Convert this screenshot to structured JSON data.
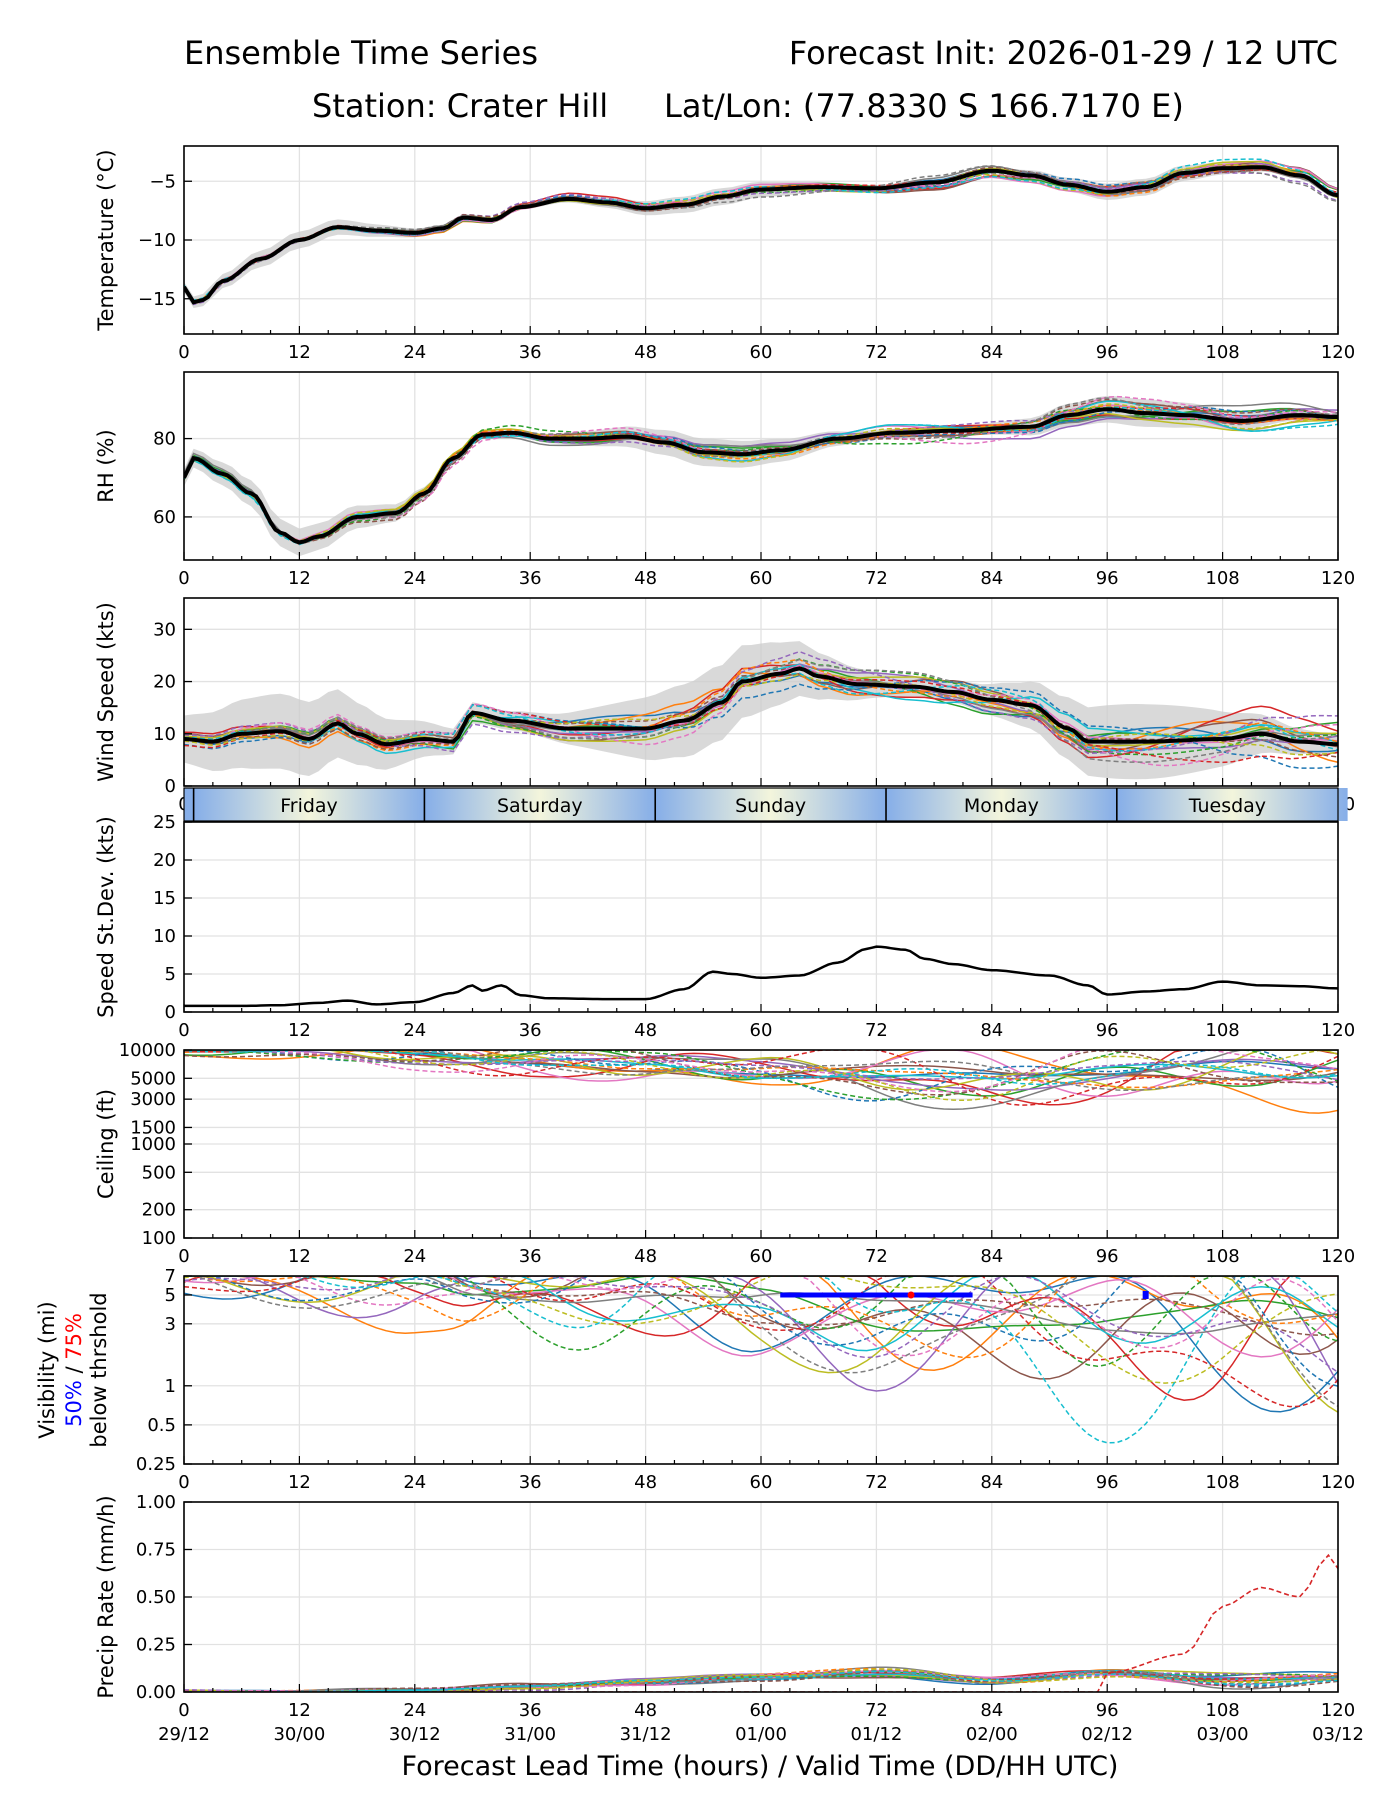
{
  "header": {
    "title_left": "Ensemble Time Series",
    "title_right": "Forecast Init: 2026-01-29 / 12 UTC",
    "station": "Station: Crater Hill",
    "latlon": "Lat/Lon: (77.8330 S 166.7170 E)"
  },
  "footer": {
    "xlabel": "Forecast Lead Time (hours) / Valid Time (DD/HH UTC)"
  },
  "colors": {
    "members": [
      "#1f77b4",
      "#ff7f0e",
      "#2ca02c",
      "#d62728",
      "#9467bd",
      "#8c564b",
      "#e377c2",
      "#7f7f7f",
      "#bcbd22",
      "#17becf"
    ],
    "mean": "#000000",
    "spread": "#cccccc",
    "threshold50": "#0000ff",
    "threshold75": "#ff0000",
    "day_gradient_edge": "#86aee8",
    "day_gradient_mid": "#f3f5dc"
  },
  "chart_data": {
    "x_ticks": [
      0,
      12,
      24,
      36,
      48,
      60,
      72,
      84,
      96,
      108,
      120
    ],
    "valid_time_labels": [
      "29/12",
      "30/00",
      "30/12",
      "31/00",
      "31/12",
      "01/00",
      "01/12",
      "02/00",
      "02/12",
      "03/00",
      "03/12"
    ],
    "day_band": {
      "labels": [
        "Friday",
        "Saturday",
        "Sunday",
        "Monday",
        "Tuesday"
      ],
      "boundaries_h": [
        1,
        25,
        49,
        73,
        97
      ]
    },
    "panels": [
      {
        "key": "temperature",
        "type": "line",
        "ylabel": "Temperature (°C)",
        "ylim": [
          -18,
          -2
        ],
        "yticks": [
          -15,
          -10,
          -5
        ],
        "ytick_labels": [
          "−15",
          "−10",
          "−5"
        ],
        "ensemble_members": 20,
        "member_noise": 0.5,
        "spread": 0.45,
        "mean": [
          [
            0,
            -14
          ],
          [
            1,
            -15.3
          ],
          [
            2,
            -15.1
          ],
          [
            4,
            -13.5
          ],
          [
            8,
            -11.6
          ],
          [
            12,
            -10.0
          ],
          [
            16,
            -8.9
          ],
          [
            20,
            -9.2
          ],
          [
            24,
            -9.4
          ],
          [
            27,
            -9.0
          ],
          [
            29,
            -8.1
          ],
          [
            32,
            -8.3
          ],
          [
            35,
            -7.2
          ],
          [
            40,
            -6.5
          ],
          [
            44,
            -6.8
          ],
          [
            48,
            -7.3
          ],
          [
            52,
            -7.0
          ],
          [
            56,
            -6.3
          ],
          [
            60,
            -5.7
          ],
          [
            66,
            -5.5
          ],
          [
            72,
            -5.6
          ],
          [
            78,
            -5.1
          ],
          [
            84,
            -4.1
          ],
          [
            88,
            -4.5
          ],
          [
            92,
            -5.3
          ],
          [
            96,
            -5.9
          ],
          [
            100,
            -5.5
          ],
          [
            104,
            -4.3
          ],
          [
            108,
            -3.9
          ],
          [
            112,
            -3.8
          ],
          [
            116,
            -4.5
          ],
          [
            120,
            -6.2
          ]
        ]
      },
      {
        "key": "rh",
        "type": "line",
        "ylabel": "RH (%)",
        "ylim": [
          49,
          97
        ],
        "yticks": [
          60,
          80
        ],
        "ytick_labels": [
          "60",
          "80"
        ],
        "ensemble_members": 20,
        "member_noise": 2.5,
        "spread": 2.2,
        "mean": [
          [
            0,
            70
          ],
          [
            1,
            75
          ],
          [
            4,
            71
          ],
          [
            7,
            66
          ],
          [
            10,
            56
          ],
          [
            12,
            53.5
          ],
          [
            14,
            55
          ],
          [
            18,
            60
          ],
          [
            22,
            61
          ],
          [
            25,
            66
          ],
          [
            28,
            75
          ],
          [
            31,
            81
          ],
          [
            34,
            81.5
          ],
          [
            38,
            80
          ],
          [
            42,
            80
          ],
          [
            46,
            80.5
          ],
          [
            50,
            79
          ],
          [
            54,
            76.5
          ],
          [
            58,
            76
          ],
          [
            62,
            77
          ],
          [
            68,
            80
          ],
          [
            74,
            81.5
          ],
          [
            80,
            82
          ],
          [
            88,
            83
          ],
          [
            92,
            86
          ],
          [
            96,
            87.5
          ],
          [
            100,
            86.5
          ],
          [
            104,
            86
          ],
          [
            110,
            84.5
          ],
          [
            116,
            86
          ],
          [
            120,
            85.5
          ]
        ]
      },
      {
        "key": "wind",
        "type": "line",
        "ylabel": "Wind Speed (kts)",
        "ylim": [
          0,
          36
        ],
        "yticks": [
          0,
          10,
          20,
          30
        ],
        "ytick_labels": [
          "0",
          "10",
          "20",
          "30"
        ],
        "ensemble_members": 20,
        "member_noise": 3.5,
        "spread": 4.5,
        "mean": [
          [
            0,
            9
          ],
          [
            3,
            8.5
          ],
          [
            6,
            10
          ],
          [
            10,
            10.5
          ],
          [
            13,
            9
          ],
          [
            16,
            12
          ],
          [
            18,
            10
          ],
          [
            21,
            8
          ],
          [
            25,
            9
          ],
          [
            28,
            8.5
          ],
          [
            30,
            14
          ],
          [
            34,
            12.5
          ],
          [
            40,
            11
          ],
          [
            48,
            11
          ],
          [
            52,
            12.5
          ],
          [
            56,
            16
          ],
          [
            58,
            20
          ],
          [
            62,
            21.5
          ],
          [
            64,
            22.5
          ],
          [
            66,
            21
          ],
          [
            70,
            19.5
          ],
          [
            76,
            19
          ],
          [
            80,
            18
          ],
          [
            84,
            16.5
          ],
          [
            88,
            15.5
          ],
          [
            92,
            11
          ],
          [
            94,
            8.5
          ],
          [
            100,
            8.5
          ],
          [
            108,
            9
          ],
          [
            112,
            10
          ],
          [
            116,
            8.5
          ],
          [
            120,
            8
          ]
        ]
      },
      {
        "key": "speed_stdev",
        "type": "line",
        "ylabel": "Speed St.Dev. (kts)",
        "ylim": [
          0,
          25
        ],
        "yticks": [
          0,
          5,
          10,
          15,
          20,
          25
        ],
        "ytick_labels": [
          "0",
          "5",
          "10",
          "15",
          "20",
          "25"
        ],
        "ensemble_members": 0,
        "mean": [
          [
            0,
            0.8
          ],
          [
            6,
            0.8
          ],
          [
            10,
            0.9
          ],
          [
            14,
            1.2
          ],
          [
            17,
            1.5
          ],
          [
            20,
            1.0
          ],
          [
            24,
            1.3
          ],
          [
            28,
            2.5
          ],
          [
            30,
            3.5
          ],
          [
            31,
            2.8
          ],
          [
            33,
            3.5
          ],
          [
            35,
            2.2
          ],
          [
            38,
            1.8
          ],
          [
            44,
            1.7
          ],
          [
            48,
            1.7
          ],
          [
            52,
            3.0
          ],
          [
            55,
            5.3
          ],
          [
            57,
            5.0
          ],
          [
            60,
            4.5
          ],
          [
            64,
            4.8
          ],
          [
            68,
            6.5
          ],
          [
            71,
            8.3
          ],
          [
            72,
            8.6
          ],
          [
            75,
            8.2
          ],
          [
            77,
            7.0
          ],
          [
            80,
            6.3
          ],
          [
            84,
            5.5
          ],
          [
            90,
            4.8
          ],
          [
            94,
            3.5
          ],
          [
            96,
            2.3
          ],
          [
            100,
            2.7
          ],
          [
            104,
            3.0
          ],
          [
            108,
            4.0
          ],
          [
            112,
            3.5
          ],
          [
            116,
            3.4
          ],
          [
            120,
            3.1
          ]
        ]
      },
      {
        "key": "ceiling",
        "type": "line",
        "scale": "log",
        "ylabel": "Ceiling (ft)",
        "ylim": [
          100,
          10000
        ],
        "yticks": [
          100,
          200,
          500,
          1000,
          1500,
          3000,
          5000,
          10000
        ],
        "ytick_labels": [
          "100",
          "200",
          "500",
          "1000",
          "1500",
          "3000",
          "5000",
          "10000"
        ],
        "ensemble_members": 20,
        "member_noise": 0.12,
        "cap": 10000,
        "median": [
          [
            0,
            10000
          ],
          [
            12,
            10000
          ],
          [
            24,
            9000
          ],
          [
            36,
            8000
          ],
          [
            48,
            6500
          ],
          [
            60,
            5500
          ],
          [
            72,
            5000
          ],
          [
            84,
            5500
          ],
          [
            96,
            6000
          ],
          [
            108,
            6500
          ],
          [
            120,
            5500
          ]
        ]
      },
      {
        "key": "visibility",
        "type": "line",
        "scale": "log",
        "ylabel": "Visibility (mi)",
        "ylabel_extra": [
          "50%",
          " / ",
          "75%",
          "below thrshold"
        ],
        "ylim": [
          0.25,
          7
        ],
        "yticks": [
          0.25,
          0.5,
          1,
          3,
          5,
          7
        ],
        "ytick_labels": [
          "0.25",
          "0.5",
          "1",
          "3",
          "5",
          "7"
        ],
        "ensemble_members": 20,
        "member_noise": 0.25,
        "cap": 7,
        "median": [
          [
            0,
            7
          ],
          [
            24,
            7
          ],
          [
            30,
            5.5
          ],
          [
            40,
            5.5
          ],
          [
            48,
            6
          ],
          [
            60,
            4.5
          ],
          [
            72,
            3.5
          ],
          [
            84,
            4
          ],
          [
            96,
            3.5
          ],
          [
            108,
            3
          ],
          [
            120,
            2.5
          ]
        ],
        "threshold_50_hours": [
          62,
          82
        ],
        "threshold_75_points": [
          75.6
        ],
        "threshold_50_point": 100,
        "threshold_value": 5
      },
      {
        "key": "precip",
        "type": "line",
        "ylabel": "Precip Rate (mm/h)",
        "ylim": [
          0,
          1.0
        ],
        "yticks": [
          0,
          0.25,
          0.5,
          0.75,
          1.0
        ],
        "ytick_labels": [
          "0.00",
          "0.25",
          "0.50",
          "0.75",
          "1.00"
        ],
        "ensemble_members": 20,
        "member_noise": 0.03,
        "median": [
          [
            0,
            0
          ],
          [
            24,
            0.005
          ],
          [
            36,
            0.03
          ],
          [
            48,
            0.05
          ],
          [
            60,
            0.08
          ],
          [
            72,
            0.1
          ],
          [
            84,
            0.06
          ],
          [
            96,
            0.1
          ],
          [
            108,
            0.06
          ],
          [
            120,
            0.08
          ]
        ],
        "outlier_series": [
          [
            96,
            0.1
          ],
          [
            104,
            0.2
          ],
          [
            108,
            0.45
          ],
          [
            112,
            0.55
          ],
          [
            116,
            0.5
          ],
          [
            119,
            0.72
          ],
          [
            120,
            0.65
          ]
        ]
      }
    ]
  }
}
